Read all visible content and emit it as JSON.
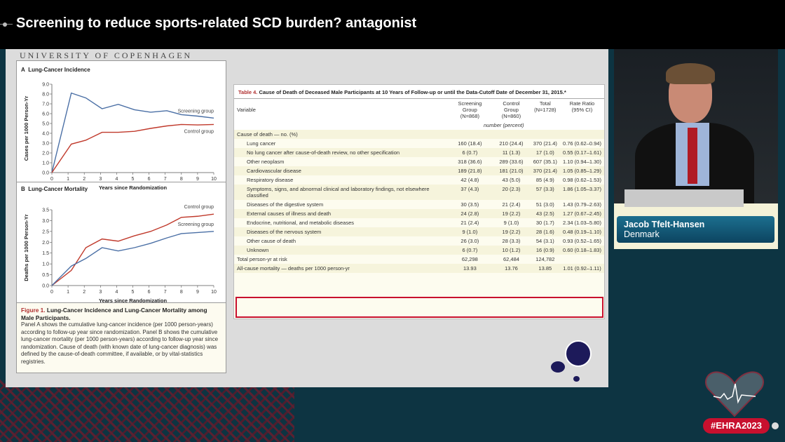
{
  "header": {
    "title": "Screening to reduce sports-related SCD burden? antagonist"
  },
  "slide": {
    "institution": "UNIVERSITY OF COPENHAGEN"
  },
  "figure": {
    "caption_label": "Figure 1.",
    "caption_title": "Lung-Cancer Incidence and Lung-Cancer Mortality among Male Participants.",
    "caption_text": "Panel A shows the cumulative lung-cancer incidence (per 1000 person-years) according to follow-up year since randomization. Panel B shows the cumulative lung-cancer mortality (per 1000 person-years) according to follow-up year since randomization. Cause of death (with known date of lung-cancer diagnosis) was defined by the cause-of-death committee, if available, or by vital-statistics registries."
  },
  "chart_data": [
    {
      "type": "line",
      "panel": "A",
      "title": "Lung-Cancer Incidence",
      "xlabel": "Years since Randomization",
      "ylabel": "Cases per 1000 Person-Yr",
      "xlim": [
        0,
        10
      ],
      "ylim": [
        0,
        9
      ],
      "xticks": [
        "0",
        "1",
        "2",
        "3",
        "4",
        "5",
        "6",
        "7",
        "8",
        "9",
        "10"
      ],
      "yticks": [
        "0.0",
        "1.0",
        "2.0",
        "3.0",
        "4.0",
        "5.0",
        "6.0",
        "7.0",
        "8.0",
        "9.0"
      ],
      "series": [
        {
          "name": "Screening group",
          "color": "#4a6fa5",
          "x": [
            0,
            1.2,
            2.1,
            3.1,
            4.1,
            5.1,
            6.1,
            7.1,
            8,
            9,
            10
          ],
          "y": [
            0,
            8.1,
            7.6,
            6.5,
            6.95,
            6.4,
            6.15,
            6.3,
            5.9,
            5.75,
            5.55
          ]
        },
        {
          "name": "Control group",
          "color": "#c0392b",
          "x": [
            0,
            1.2,
            2.1,
            3.1,
            4.1,
            5.1,
            6.1,
            7.1,
            8,
            9,
            10
          ],
          "y": [
            0,
            2.9,
            3.3,
            4.1,
            4.1,
            4.2,
            4.5,
            4.75,
            4.9,
            4.85,
            4.9
          ]
        }
      ]
    },
    {
      "type": "line",
      "panel": "B",
      "title": "Lung-Cancer Mortality",
      "xlabel": "Years since Randomization",
      "ylabel": "Deaths per 1000 Person-Yr",
      "xlim": [
        0,
        10
      ],
      "ylim": [
        0,
        3.5
      ],
      "xticks": [
        "0",
        "1",
        "2",
        "3",
        "4",
        "5",
        "6",
        "7",
        "8",
        "9",
        "10"
      ],
      "yticks": [
        "0.0",
        "0.5",
        "1.0",
        "1.5",
        "2.0",
        "2.5",
        "3.0",
        "3.5"
      ],
      "series": [
        {
          "name": "Control group",
          "color": "#c0392b",
          "x": [
            0,
            1.2,
            2.1,
            3.1,
            4.1,
            5.1,
            6.1,
            7.1,
            8,
            9,
            10
          ],
          "y": [
            0,
            0.7,
            1.75,
            2.15,
            2.05,
            2.3,
            2.5,
            2.8,
            3.15,
            3.2,
            3.3
          ]
        },
        {
          "name": "Screening group",
          "color": "#4a6fa5",
          "x": [
            0,
            1.2,
            2.1,
            3.1,
            4.1,
            5.1,
            6.1,
            7.1,
            8,
            9,
            10
          ],
          "y": [
            0,
            0.9,
            1.25,
            1.75,
            1.6,
            1.75,
            1.95,
            2.2,
            2.4,
            2.45,
            2.5
          ]
        }
      ]
    }
  ],
  "table": {
    "label": "Table 4.",
    "title": "Cause of Death of Deceased Male Participants at 10 Years of Follow-up or until the Data-Cutoff Date of December 31, 2015.*",
    "columns": [
      {
        "h": "Variable",
        "s": ""
      },
      {
        "h": "Screening Group",
        "s": "(N=868)"
      },
      {
        "h": "Control Group",
        "s": "(N=860)"
      },
      {
        "h": "Total",
        "s": "(N=1728)"
      },
      {
        "h": "Rate Ratio",
        "s": "(95% CI)"
      }
    ],
    "unit": "number (percent)",
    "section": "Cause of death — no. (%)",
    "rows": [
      [
        "Lung cancer",
        "160 (18.4)",
        "210 (24.4)",
        "370 (21.4)",
        "0.76 (0.62–0.94)"
      ],
      [
        "No lung cancer after cause-of-death review, no other specification",
        "6 (0.7)",
        "11 (1.3)",
        "17 (1.0)",
        "0.55 (0.17–1.61)"
      ],
      [
        "Other neoplasm",
        "318 (36.6)",
        "289 (33.6)",
        "607 (35.1)",
        "1.10 (0.94–1.30)"
      ],
      [
        "Cardiovascular disease",
        "189 (21.8)",
        "181 (21.0)",
        "370 (21.4)",
        "1.05 (0.85–1.29)"
      ],
      [
        "Respiratory disease",
        "42 (4.8)",
        "43 (5.0)",
        "85 (4.9)",
        "0.98 (0.62–1.53)"
      ],
      [
        "Symptoms, signs, and abnormal clinical and laboratory findings, not elsewhere classified",
        "37 (4.3)",
        "20 (2.3)",
        "57 (3.3)",
        "1.86 (1.05–3.37)"
      ],
      [
        "Diseases of the digestive system",
        "30 (3.5)",
        "21 (2.4)",
        "51 (3.0)",
        "1.43 (0.79–2.63)"
      ],
      [
        "External causes of illness and death",
        "24 (2.8)",
        "19 (2.2)",
        "43 (2.5)",
        "1.27 (0.67–2.45)"
      ],
      [
        "Endocrine, nutritional, and metabolic diseases",
        "21 (2.4)",
        "9 (1.0)",
        "30 (1.7)",
        "2.34 (1.03–5.80)"
      ],
      [
        "Diseases of the nervous system",
        "9 (1.0)",
        "19 (2.2)",
        "28 (1.6)",
        "0.48 (0.19–1.10)"
      ],
      [
        "Other cause of death",
        "26 (3.0)",
        "28 (3.3)",
        "54 (3.1)",
        "0.93 (0.52–1.65)"
      ],
      [
        "Unknown",
        "6 (0.7)",
        "10 (1.2)",
        "16 (0.9)",
        "0.60 (0.18–1.83)"
      ]
    ],
    "total_row": [
      "Total person-yr at risk",
      "62,298",
      "62,484",
      "124,782",
      ""
    ],
    "mortality_row": [
      "All-cause mortality — deaths per 1000 person-yr",
      "13.93",
      "13.76",
      "13.85",
      "1.01 (0.92–1.11)"
    ],
    "highlight_color": "#c8102e"
  },
  "speaker": {
    "name": "Jacob Tfelt-Hansen",
    "country": "Denmark"
  },
  "event": {
    "hashtag": "#EHRA2023"
  }
}
